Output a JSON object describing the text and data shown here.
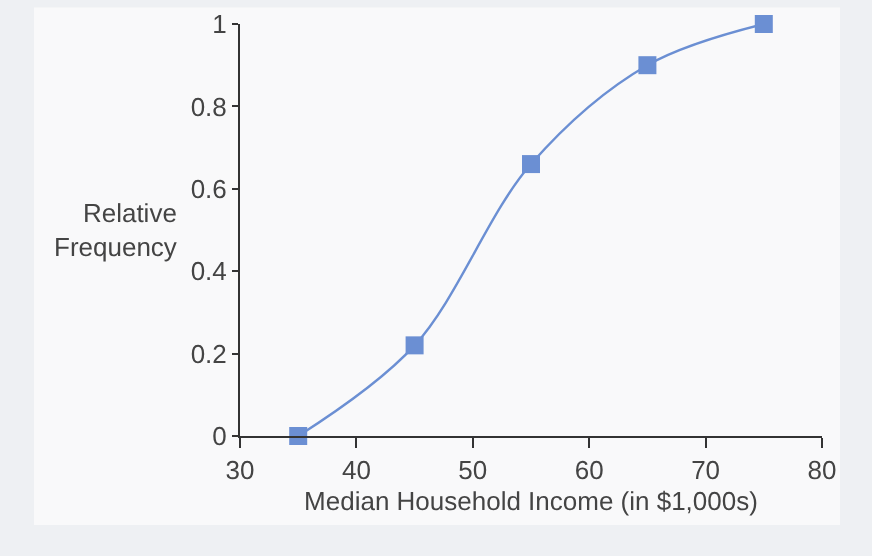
{
  "chart_data": {
    "type": "line",
    "xlabel": "Median Household Income (in $1,000s)",
    "ylabel": "Relative Frequency",
    "x": [
      35,
      45,
      55,
      65,
      75
    ],
    "series": [
      {
        "color": "#6b8fd3",
        "values": [
          0,
          0.22,
          0.66,
          0.9,
          1
        ]
      }
    ],
    "xlim": [
      30,
      80
    ],
    "xticks": [
      30,
      40,
      50,
      60,
      70,
      80
    ],
    "ylim": [
      0,
      1
    ],
    "yticks": [
      0,
      0.2,
      0.4,
      0.6,
      0.8,
      1
    ],
    "grid": false,
    "marker": "square",
    "line_style": "solid"
  }
}
